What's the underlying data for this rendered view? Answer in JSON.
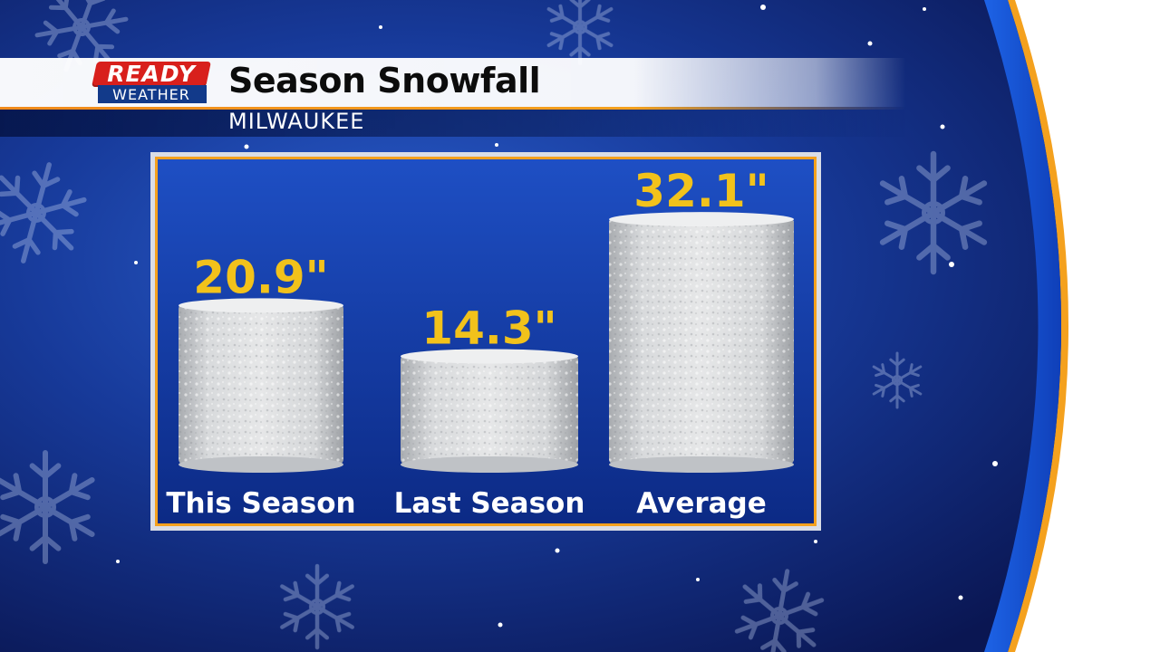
{
  "header": {
    "logo": {
      "top": "READY",
      "bottom": "WEATHER"
    },
    "title": "Season Snowfall",
    "subtitle": "MILWAUKEE"
  },
  "colors": {
    "value_label": "#f2c21b",
    "panel_border": "#f4a11e",
    "accent_orange": "#f08a1c",
    "logo_red": "#d8201c"
  },
  "chart_data": {
    "type": "bar",
    "categories": [
      "This Season",
      "Last Season",
      "Average"
    ],
    "values": [
      20.9,
      14.3,
      32.1
    ],
    "value_labels": [
      "20.9\"",
      "14.3\"",
      "32.1\""
    ],
    "unit": "inches",
    "title": "Season Snowfall",
    "subtitle": "MILWAUKEE",
    "bar_style": "snow-cylinder"
  }
}
